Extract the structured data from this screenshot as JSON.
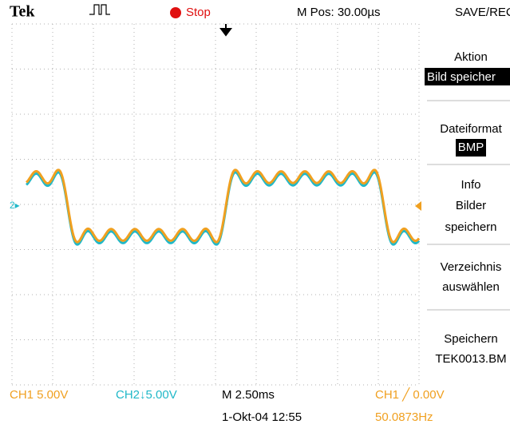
{
  "header": {
    "brand": "Tek",
    "status": "Stop",
    "position": "M Pos: 30.00µs",
    "menu_title": "SAVE/REC."
  },
  "menu": {
    "action_label": "Aktion",
    "action_value": "Bild speicher",
    "format_label": "Dateiformat",
    "format_value": "BMP",
    "info": [
      "Info",
      "Bilder",
      "speichern"
    ],
    "folder": [
      "Verzeichnis",
      "auswählen"
    ],
    "save": [
      "Speichern",
      "TEK0013.BM"
    ]
  },
  "footer": {
    "ch1": "CH1  5.00V",
    "ch2": "CH2↓5.00V",
    "timebase": "M 2.50ms",
    "trigger": "CH1 ╱ 0.00V",
    "date": "1-Okt-04 12:55",
    "frequency": "50.0873Hz"
  },
  "markers": {
    "ch2": "2▸"
  }
}
